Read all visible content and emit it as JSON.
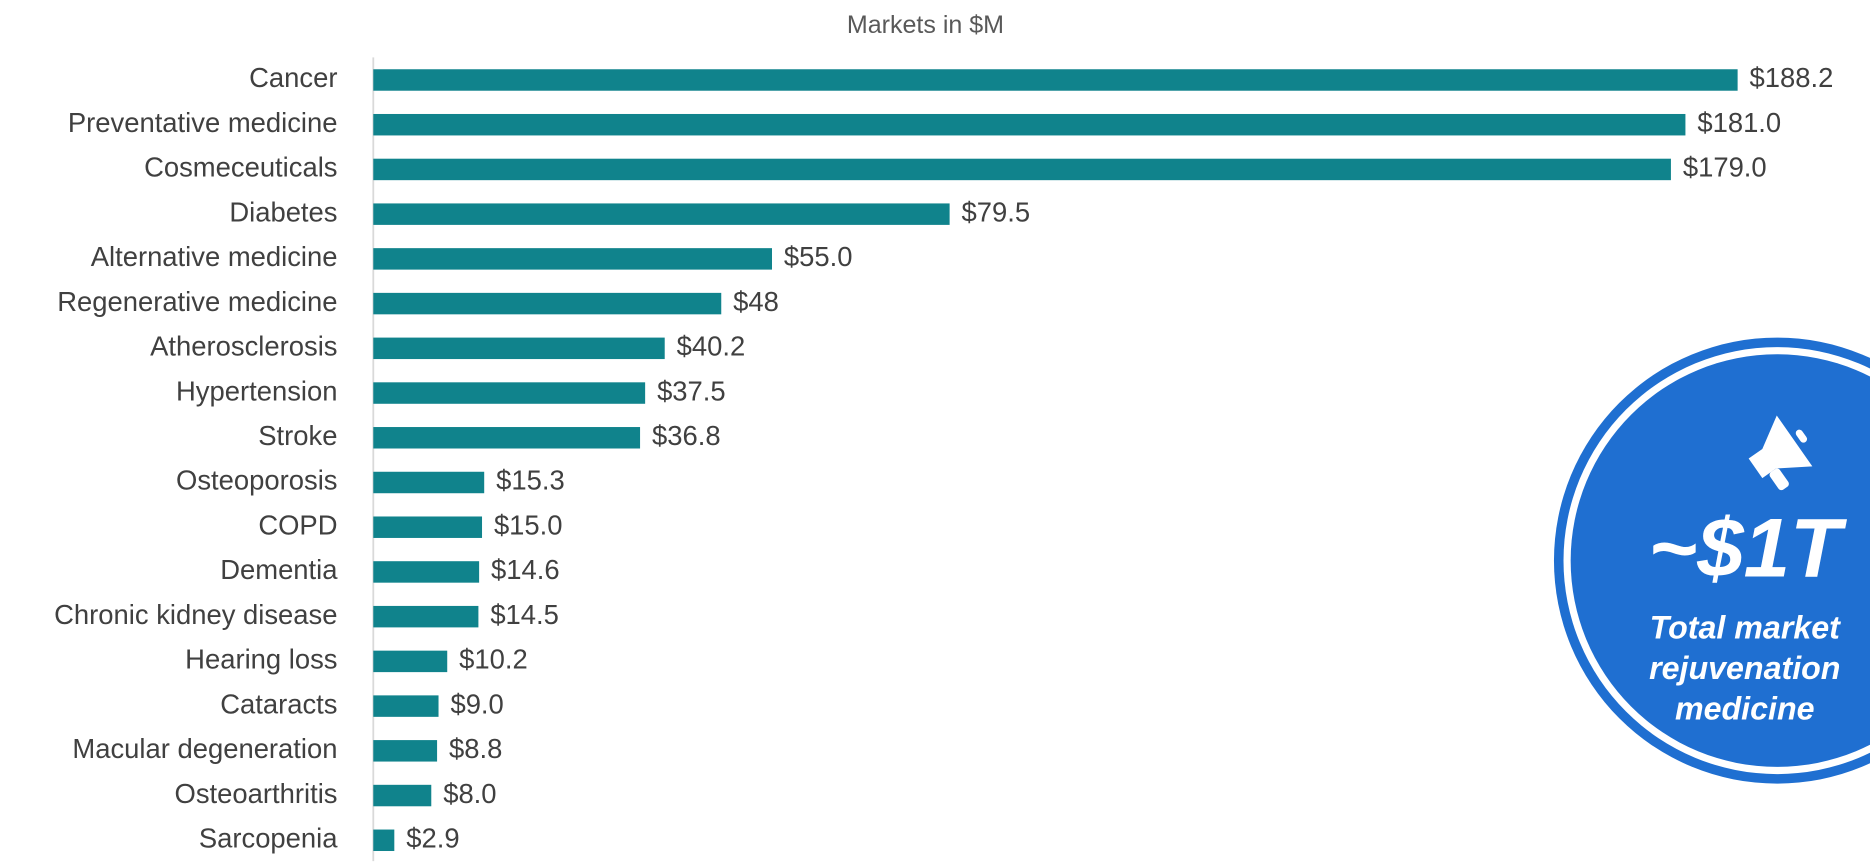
{
  "chart_data": {
    "type": "hbar",
    "title": "Markets in $M",
    "categories": [
      "Cancer",
      "Preventative medicine",
      "Cosmeceuticals",
      "Diabetes",
      "Alternative medicine",
      "Regenerative medicine",
      "Atherosclerosis",
      "Hypertension",
      "Stroke",
      "Osteoporosis",
      "COPD",
      "Dementia",
      "Chronic kidney disease",
      "Hearing loss",
      "Cataracts",
      "Macular degeneration",
      "Osteoarthritis",
      "Sarcopenia"
    ],
    "values": [
      188.2,
      181.0,
      179.0,
      79.5,
      55.0,
      48,
      40.2,
      37.5,
      36.8,
      15.3,
      15.0,
      14.6,
      14.5,
      10.2,
      9.0,
      8.8,
      8.0,
      2.9
    ],
    "value_labels": [
      "$188.2",
      "$181.0",
      "$179.0",
      "$79.5",
      "$55.0",
      "$48",
      "$40.2",
      "$37.5",
      "$36.8",
      "$15.3",
      "$15.0",
      "$14.6",
      "$14.5",
      "$10.2",
      "$9.0",
      "$8.8",
      "$8.0",
      "$2.9"
    ],
    "color": "#10838c",
    "callout": {
      "headline": "~$1T",
      "lines": [
        "Total market",
        "rejuvenation",
        "medicine"
      ],
      "color": "#1f6fd1"
    }
  }
}
